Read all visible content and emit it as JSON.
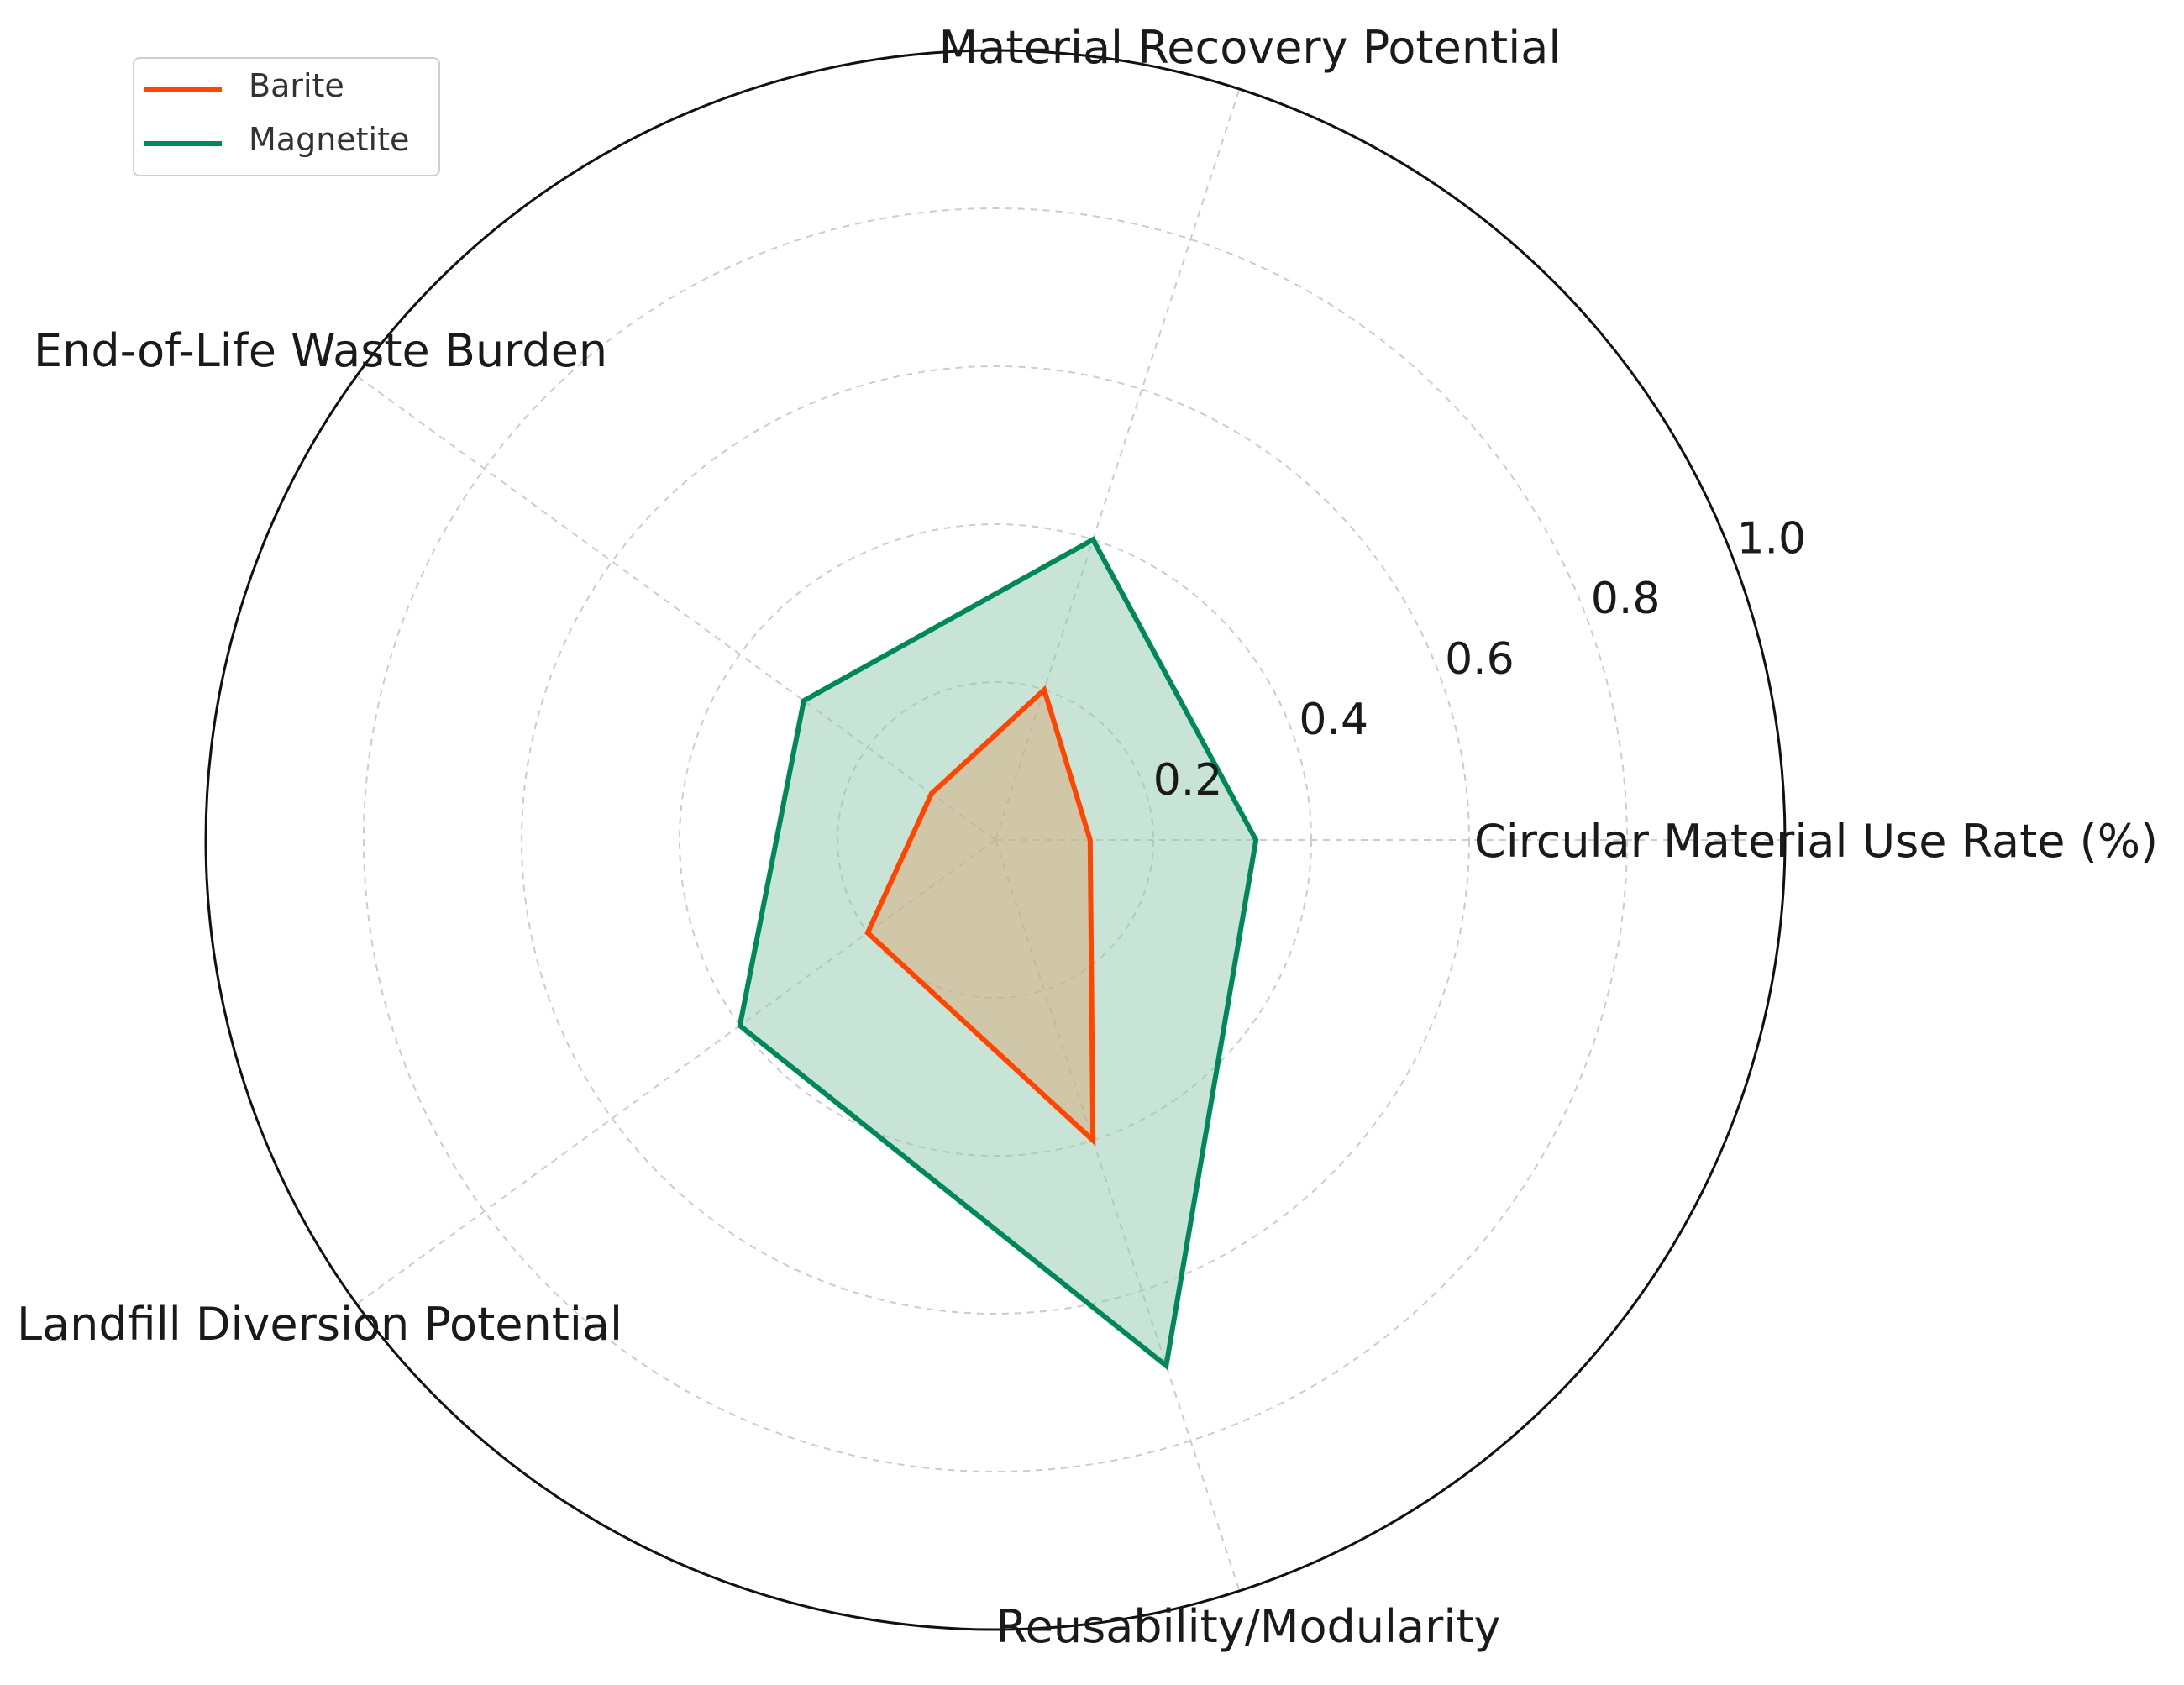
{
  "chart_data": {
    "type": "radar",
    "axes": [
      "Circular Material Use Rate (%)",
      "Material Recovery Potential",
      "End-of-Life Waste Burden",
      "Landfill Diversion Potential",
      "Reusability/Modularity"
    ],
    "radial_ticks": [
      "0.2",
      "0.4",
      "0.6",
      "0.8",
      "1.0"
    ],
    "radial_tick_values": [
      0.2,
      0.4,
      0.6,
      0.8,
      1.0
    ],
    "rlim": [
      0,
      1.0
    ],
    "grid": true,
    "legend_position": "upper-left",
    "series": [
      {
        "name": "Barite",
        "color": "#ff4500",
        "fill": "#d9a87a",
        "values": [
          0.12,
          0.2,
          0.1,
          0.2,
          0.4
        ]
      },
      {
        "name": "Magnetite",
        "color": "#00875a",
        "fill": "#8fc9ae",
        "values": [
          0.33,
          0.4,
          0.3,
          0.4,
          0.7
        ]
      }
    ]
  }
}
